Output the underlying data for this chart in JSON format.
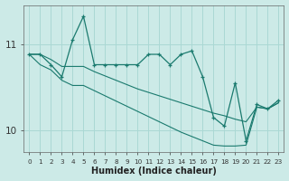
{
  "xlabel": "Humidex (Indice chaleur)",
  "background_color": "#cceae7",
  "grid_color": "#aad8d4",
  "line_color": "#1a7a6e",
  "x_values": [
    0,
    1,
    2,
    3,
    4,
    5,
    6,
    7,
    8,
    9,
    10,
    11,
    12,
    13,
    14,
    15,
    16,
    17,
    18,
    19,
    20,
    21,
    22,
    23
  ],
  "jagged_y": [
    10.88,
    10.88,
    10.76,
    10.62,
    11.05,
    11.32,
    10.76,
    10.76,
    10.76,
    10.76,
    10.76,
    10.88,
    10.88,
    10.76,
    10.88,
    10.92,
    10.62,
    10.15,
    10.05,
    10.55,
    9.88,
    10.3,
    10.25,
    10.35
  ],
  "upper_y": [
    10.88,
    10.88,
    10.82,
    10.74,
    10.74,
    10.74,
    10.68,
    10.63,
    10.58,
    10.53,
    10.48,
    10.44,
    10.4,
    10.36,
    10.32,
    10.28,
    10.24,
    10.2,
    10.17,
    10.13,
    10.1,
    10.27,
    10.25,
    10.32
  ],
  "lower_y": [
    10.88,
    10.76,
    10.7,
    10.58,
    10.52,
    10.52,
    10.46,
    10.4,
    10.34,
    10.28,
    10.22,
    10.16,
    10.1,
    10.04,
    9.98,
    9.93,
    9.88,
    9.83,
    9.82,
    9.82,
    9.83,
    10.27,
    10.25,
    10.32
  ],
  "ylim": [
    9.75,
    11.45
  ],
  "yticks": [
    10,
    11
  ],
  "ytick_labels": [
    "10",
    "11"
  ],
  "xlim": [
    -0.5,
    23.5
  ],
  "xtick_fontsize": 5.2,
  "ytick_fontsize": 7.5,
  "xlabel_fontsize": 7,
  "linewidth_jagged": 0.9,
  "linewidth_trend": 0.8,
  "marker_size": 3.5,
  "marker_ew": 0.9
}
